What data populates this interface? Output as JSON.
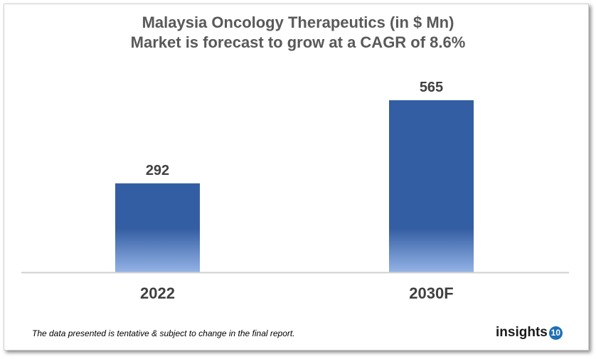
{
  "chart_data": {
    "type": "bar",
    "title": "Malaysia Oncology Therapeutics (in $ Mn) Market is forecast to grow at a CAGR of 8.6%",
    "title_lines": [
      "Malaysia Oncology Therapeutics (in $ Mn)",
      "Market is forecast to grow at a CAGR of 8.6%"
    ],
    "categories": [
      "2022",
      "2030F"
    ],
    "values": [
      292,
      565
    ],
    "data_labels": [
      "292",
      "565"
    ],
    "xlabel": "",
    "ylabel": "",
    "ylim": [
      0,
      600
    ],
    "grid": false,
    "bar_color_top": "#345ea3",
    "bar_color_bottom": "#94b3e6"
  },
  "footer": {
    "note": "The data presented is tentative & subject to change in the final report.",
    "logo_text": "insights",
    "logo_badge": "10"
  }
}
